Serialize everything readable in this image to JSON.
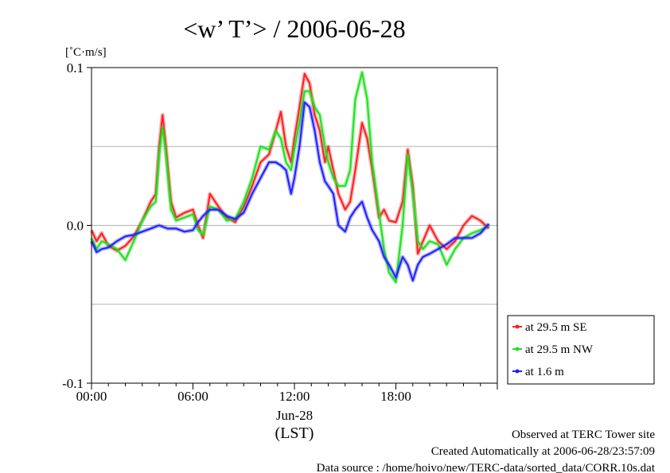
{
  "chart_data": {
    "type": "line",
    "title": "<w’ T’> / 2006-06-28",
    "ylabel": "[˚C·m/s]",
    "ylim": [
      -0.1,
      0.1
    ],
    "yticks": [
      {
        "value": 0.1,
        "label": "0.1"
      },
      {
        "value": 0.0,
        "label": "0.0"
      },
      {
        "value": -0.1,
        "label": "-0.1"
      }
    ],
    "ygrid": [
      0.05,
      -0.05
    ],
    "xlim": [
      0,
      24
    ],
    "xticks": [
      {
        "value": 0,
        "label": "00:00"
      },
      {
        "value": 6,
        "label": "06:00"
      },
      {
        "value": 12,
        "label": "12:00"
      },
      {
        "value": 18,
        "label": "18:00"
      }
    ],
    "xdate": "Jun-28",
    "xunit": "(LST)",
    "series": [
      {
        "name": "at 29.5 m SE",
        "color": "#ff2020",
        "points": [
          [
            0,
            -0.003
          ],
          [
            0.3,
            -0.01
          ],
          [
            0.6,
            -0.005
          ],
          [
            1.0,
            -0.013
          ],
          [
            1.5,
            -0.016
          ],
          [
            2.0,
            -0.013
          ],
          [
            2.5,
            -0.007
          ],
          [
            3.0,
            0.003
          ],
          [
            3.5,
            0.015
          ],
          [
            3.8,
            0.02
          ],
          [
            4.0,
            0.05
          ],
          [
            4.2,
            0.07
          ],
          [
            4.4,
            0.05
          ],
          [
            4.7,
            0.015
          ],
          [
            5.0,
            0.005
          ],
          [
            5.5,
            0.008
          ],
          [
            6.0,
            0.01
          ],
          [
            6.3,
            0.0
          ],
          [
            6.6,
            -0.008
          ],
          [
            7.0,
            0.02
          ],
          [
            7.5,
            0.012
          ],
          [
            8.0,
            0.005
          ],
          [
            8.5,
            0.002
          ],
          [
            9.0,
            0.012
          ],
          [
            9.5,
            0.025
          ],
          [
            10.0,
            0.04
          ],
          [
            10.5,
            0.045
          ],
          [
            10.9,
            0.06
          ],
          [
            11.2,
            0.072
          ],
          [
            11.5,
            0.05
          ],
          [
            11.8,
            0.04
          ],
          [
            12.0,
            0.055
          ],
          [
            12.3,
            0.075
          ],
          [
            12.6,
            0.096
          ],
          [
            12.9,
            0.09
          ],
          [
            13.2,
            0.07
          ],
          [
            13.5,
            0.06
          ],
          [
            13.8,
            0.04
          ],
          [
            14.0,
            0.05
          ],
          [
            14.3,
            0.035
          ],
          [
            14.6,
            0.02
          ],
          [
            15.0,
            0.01
          ],
          [
            15.3,
            0.015
          ],
          [
            15.6,
            0.035
          ],
          [
            16.0,
            0.065
          ],
          [
            16.3,
            0.055
          ],
          [
            16.6,
            0.035
          ],
          [
            17.0,
            0.005
          ],
          [
            17.3,
            0.01
          ],
          [
            17.6,
            0.003
          ],
          [
            18.0,
            0.002
          ],
          [
            18.4,
            0.015
          ],
          [
            18.7,
            0.048
          ],
          [
            19.0,
            0.025
          ],
          [
            19.3,
            -0.018
          ],
          [
            19.6,
            -0.01
          ],
          [
            20.0,
            0.0
          ],
          [
            20.5,
            -0.01
          ],
          [
            21.0,
            -0.015
          ],
          [
            21.5,
            -0.01
          ],
          [
            22.0,
            0.0
          ],
          [
            22.5,
            0.006
          ],
          [
            23.0,
            0.003
          ],
          [
            23.5,
            -0.002
          ]
        ]
      },
      {
        "name": "at 29.5 m NW",
        "color": "#20e020",
        "points": [
          [
            0,
            -0.008
          ],
          [
            0.3,
            -0.015
          ],
          [
            0.6,
            -0.01
          ],
          [
            1.0,
            -0.012
          ],
          [
            1.5,
            -0.015
          ],
          [
            2.0,
            -0.022
          ],
          [
            2.5,
            -0.01
          ],
          [
            3.0,
            0.003
          ],
          [
            3.5,
            0.012
          ],
          [
            3.8,
            0.015
          ],
          [
            4.0,
            0.045
          ],
          [
            4.2,
            0.062
          ],
          [
            4.4,
            0.045
          ],
          [
            4.7,
            0.01
          ],
          [
            5.0,
            0.003
          ],
          [
            5.5,
            0.005
          ],
          [
            6.0,
            0.007
          ],
          [
            6.3,
            -0.003
          ],
          [
            6.6,
            -0.006
          ],
          [
            7.0,
            0.012
          ],
          [
            7.5,
            0.01
          ],
          [
            8.0,
            0.003
          ],
          [
            8.5,
            0.004
          ],
          [
            9.0,
            0.015
          ],
          [
            9.5,
            0.03
          ],
          [
            10.0,
            0.05
          ],
          [
            10.5,
            0.048
          ],
          [
            10.9,
            0.06
          ],
          [
            11.2,
            0.055
          ],
          [
            11.5,
            0.04
          ],
          [
            11.8,
            0.035
          ],
          [
            12.0,
            0.048
          ],
          [
            12.3,
            0.065
          ],
          [
            12.6,
            0.085
          ],
          [
            12.9,
            0.085
          ],
          [
            13.2,
            0.075
          ],
          [
            13.5,
            0.07
          ],
          [
            13.8,
            0.05
          ],
          [
            14.0,
            0.04
          ],
          [
            14.3,
            0.03
          ],
          [
            14.6,
            0.025
          ],
          [
            15.0,
            0.025
          ],
          [
            15.3,
            0.035
          ],
          [
            15.6,
            0.08
          ],
          [
            16.0,
            0.097
          ],
          [
            16.3,
            0.08
          ],
          [
            16.6,
            0.04
          ],
          [
            17.0,
            0.008
          ],
          [
            17.3,
            -0.015
          ],
          [
            17.6,
            -0.03
          ],
          [
            18.0,
            -0.036
          ],
          [
            18.4,
            0.0
          ],
          [
            18.7,
            0.045
          ],
          [
            19.0,
            0.02
          ],
          [
            19.3,
            -0.01
          ],
          [
            19.6,
            -0.015
          ],
          [
            20.0,
            -0.01
          ],
          [
            20.5,
            -0.012
          ],
          [
            21.0,
            -0.025
          ],
          [
            21.5,
            -0.015
          ],
          [
            22.0,
            -0.008
          ],
          [
            22.5,
            -0.005
          ],
          [
            23.0,
            -0.003
          ],
          [
            23.5,
            0.0
          ]
        ]
      },
      {
        "name": "at 1.6 m",
        "color": "#2020ff",
        "points": [
          [
            0,
            -0.01
          ],
          [
            0.3,
            -0.017
          ],
          [
            0.6,
            -0.015
          ],
          [
            1.0,
            -0.014
          ],
          [
            1.5,
            -0.01
          ],
          [
            2.0,
            -0.007
          ],
          [
            2.5,
            -0.006
          ],
          [
            3.0,
            -0.004
          ],
          [
            3.5,
            -0.002
          ],
          [
            4.0,
            0.0
          ],
          [
            4.5,
            -0.002
          ],
          [
            5.0,
            -0.002
          ],
          [
            5.5,
            -0.004
          ],
          [
            6.0,
            -0.003
          ],
          [
            6.3,
            0.002
          ],
          [
            6.6,
            0.006
          ],
          [
            7.0,
            0.01
          ],
          [
            7.5,
            0.01
          ],
          [
            8.0,
            0.006
          ],
          [
            8.5,
            0.004
          ],
          [
            9.0,
            0.008
          ],
          [
            9.5,
            0.02
          ],
          [
            10.0,
            0.03
          ],
          [
            10.5,
            0.04
          ],
          [
            10.9,
            0.04
          ],
          [
            11.2,
            0.038
          ],
          [
            11.5,
            0.035
          ],
          [
            11.8,
            0.02
          ],
          [
            12.0,
            0.03
          ],
          [
            12.3,
            0.05
          ],
          [
            12.6,
            0.078
          ],
          [
            12.9,
            0.075
          ],
          [
            13.2,
            0.06
          ],
          [
            13.5,
            0.04
          ],
          [
            13.8,
            0.028
          ],
          [
            14.0,
            0.025
          ],
          [
            14.3,
            0.02
          ],
          [
            14.6,
            0.0
          ],
          [
            15.0,
            -0.004
          ],
          [
            15.3,
            0.005
          ],
          [
            15.6,
            0.01
          ],
          [
            16.0,
            0.015
          ],
          [
            16.3,
            0.005
          ],
          [
            16.6,
            -0.003
          ],
          [
            17.0,
            -0.01
          ],
          [
            17.3,
            -0.02
          ],
          [
            17.6,
            -0.025
          ],
          [
            18.0,
            -0.033
          ],
          [
            18.4,
            -0.02
          ],
          [
            18.7,
            -0.025
          ],
          [
            19.0,
            -0.035
          ],
          [
            19.3,
            -0.025
          ],
          [
            19.6,
            -0.02
          ],
          [
            20.0,
            -0.018
          ],
          [
            20.5,
            -0.015
          ],
          [
            21.0,
            -0.012
          ],
          [
            21.5,
            -0.008
          ],
          [
            22.0,
            -0.008
          ],
          [
            22.5,
            -0.008
          ],
          [
            23.0,
            -0.005
          ],
          [
            23.5,
            0.001
          ]
        ]
      }
    ],
    "legend_position": "bottom-right, outside plot",
    "grid": "horizontal"
  },
  "footer": {
    "line1": "Observed at TERC Tower site",
    "line2": "Created Automatically at 2006-06-28/23:57:09",
    "line3": "Data source : /home/hoivo/new/TERC-data/sorted_data/CORR.10s.dat"
  }
}
